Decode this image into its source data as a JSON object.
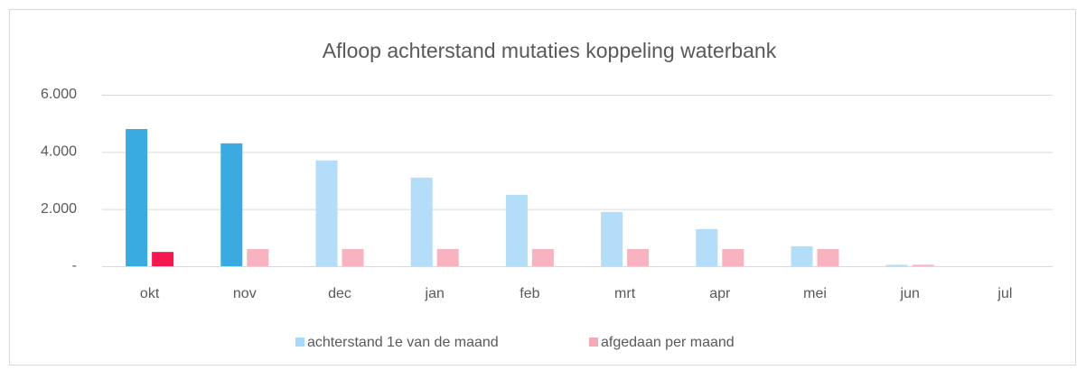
{
  "chart_data": {
    "type": "bar",
    "title": "Afloop achterstand mutaties koppeling waterbank",
    "categories": [
      "okt",
      "nov",
      "dec",
      "jan",
      "feb",
      "mrt",
      "apr",
      "mei",
      "jun",
      "jul"
    ],
    "series": [
      {
        "name": "achterstand 1e van de maand",
        "color": "#a9d9f8",
        "colors": [
          "#3aabe0",
          "#3aabe0",
          "#b3ddf9",
          "#b3ddf9",
          "#b3ddf9",
          "#b3ddf9",
          "#b3ddf9",
          "#b3ddf9",
          "#b3ddf9",
          "#b3ddf9"
        ],
        "values": [
          4800,
          4300,
          3700,
          3100,
          2500,
          1900,
          1300,
          700,
          50,
          0
        ]
      },
      {
        "name": "afgedaan per maand",
        "color": "#f6aab7",
        "colors": [
          "#f5174f",
          "#f7b3bf",
          "#f7b3bf",
          "#f7b3bf",
          "#f7b3bf",
          "#f7b3bf",
          "#f7b3bf",
          "#f7b3bf",
          "#f7b3bf",
          "#f7b3bf"
        ],
        "values": [
          500,
          600,
          600,
          600,
          600,
          600,
          600,
          600,
          50,
          0
        ]
      }
    ],
    "ylim": [
      0,
      6000
    ],
    "yticks": [
      {
        "value": 0,
        "label": "-"
      },
      {
        "value": 2000,
        "label": "2.000"
      },
      {
        "value": 4000,
        "label": "4.000"
      },
      {
        "value": 6000,
        "label": "6.000"
      }
    ],
    "grid": true,
    "legend": "bottom"
  }
}
